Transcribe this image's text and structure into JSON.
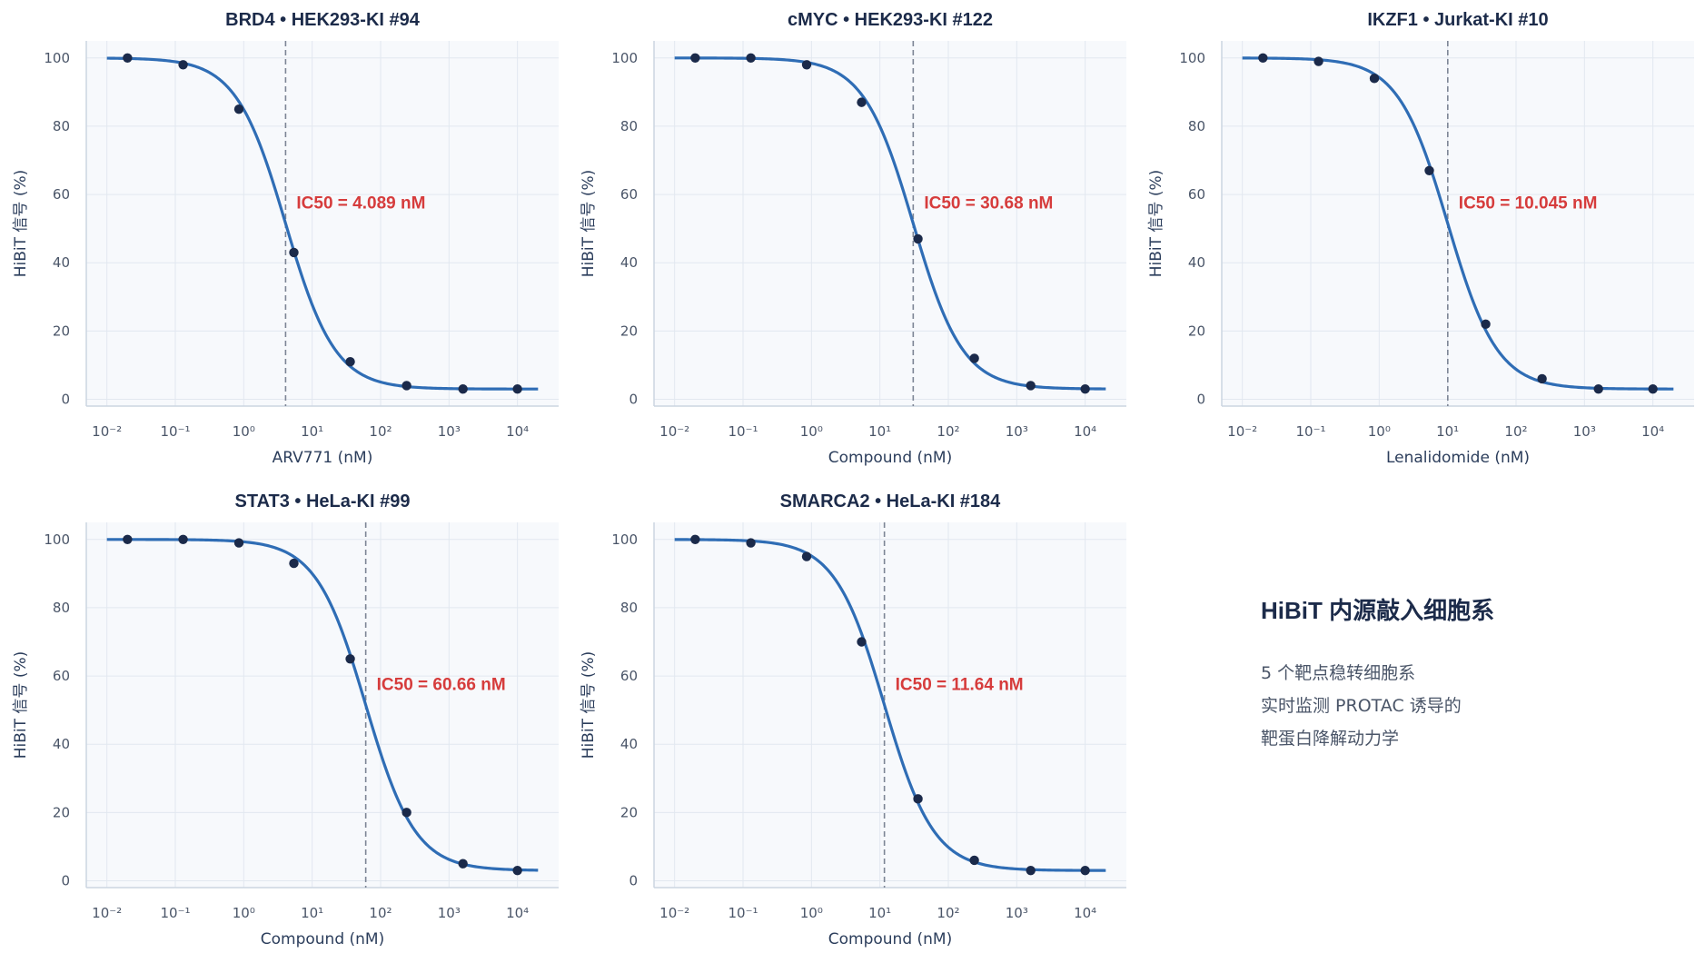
{
  "chart_data": [
    {
      "type": "line",
      "title": "BRD4  •  HEK293-KI #94",
      "xlabel": "ARV771 (nM)",
      "ylabel": "HiBiT 信号 (%)",
      "x_scale": "log",
      "xlim": [
        0.005,
        40000
      ],
      "ylim": [
        -2,
        105
      ],
      "x_ticks": [
        0.01,
        0.1,
        1,
        10,
        100,
        1000,
        10000
      ],
      "y_ticks": [
        0,
        20,
        40,
        60,
        80,
        100
      ],
      "ic50": 4.089,
      "ic50_label": "IC50 = 4.089 nM",
      "fit": {
        "top": 100,
        "bottom": 3,
        "hill": 1.2,
        "x_range": [
          0.01,
          20000
        ]
      },
      "series": [
        {
          "x": [
            0.02,
            0.13,
            0.85,
            5.4,
            36,
            240,
            1600,
            10000
          ],
          "y": [
            100,
            98,
            85,
            43,
            11,
            4,
            3,
            3
          ]
        }
      ]
    },
    {
      "type": "line",
      "title": "cMYC  •  HEK293-KI #122",
      "xlabel": "Compound (nM)",
      "ylabel": "HiBiT 信号 (%)",
      "x_scale": "log",
      "xlim": [
        0.005,
        40000
      ],
      "ylim": [
        -2,
        105
      ],
      "x_ticks": [
        0.01,
        0.1,
        1,
        10,
        100,
        1000,
        10000
      ],
      "y_ticks": [
        0,
        20,
        40,
        60,
        80,
        100
      ],
      "ic50": 30.68,
      "ic50_label": "IC50 = 30.68 nM",
      "fit": {
        "top": 100,
        "bottom": 3,
        "hill": 1.2,
        "x_range": [
          0.01,
          20000
        ]
      },
      "series": [
        {
          "x": [
            0.02,
            0.13,
            0.85,
            5.4,
            36,
            240,
            1600,
            10000
          ],
          "y": [
            100,
            100,
            98,
            87,
            47,
            12,
            4,
            3
          ]
        }
      ]
    },
    {
      "type": "line",
      "title": "IKZF1  •  Jurkat-KI #10",
      "xlabel": "Lenalidomide (nM)",
      "ylabel": "HiBiT 信号 (%)",
      "x_scale": "log",
      "xlim": [
        0.005,
        40000
      ],
      "ylim": [
        -2,
        105
      ],
      "x_ticks": [
        0.01,
        0.1,
        1,
        10,
        100,
        1000,
        10000
      ],
      "y_ticks": [
        0,
        20,
        40,
        60,
        80,
        100
      ],
      "ic50": 10.045,
      "ic50_label": "IC50 = 10.045 nM",
      "fit": {
        "top": 100,
        "bottom": 3,
        "hill": 1.2,
        "x_range": [
          0.01,
          20000
        ]
      },
      "series": [
        {
          "x": [
            0.02,
            0.13,
            0.85,
            5.4,
            36,
            240,
            1600,
            10000
          ],
          "y": [
            100,
            99,
            94,
            67,
            22,
            6,
            3,
            3
          ]
        }
      ]
    },
    {
      "type": "line",
      "title": "STAT3  •  HeLa-KI #99",
      "xlabel": "Compound (nM)",
      "ylabel": "HiBiT 信号 (%)",
      "x_scale": "log",
      "xlim": [
        0.005,
        40000
      ],
      "ylim": [
        -2,
        105
      ],
      "x_ticks": [
        0.01,
        0.1,
        1,
        10,
        100,
        1000,
        10000
      ],
      "y_ticks": [
        0,
        20,
        40,
        60,
        80,
        100
      ],
      "ic50": 60.66,
      "ic50_label": "IC50 = 60.66 nM",
      "fit": {
        "top": 100,
        "bottom": 3,
        "hill": 1.2,
        "x_range": [
          0.01,
          20000
        ]
      },
      "series": [
        {
          "x": [
            0.02,
            0.13,
            0.85,
            5.4,
            36,
            240,
            1600,
            10000
          ],
          "y": [
            100,
            100,
            99,
            93,
            65,
            20,
            5,
            3
          ]
        }
      ]
    },
    {
      "type": "line",
      "title": "SMARCA2  •  HeLa-KI #184",
      "xlabel": "Compound (nM)",
      "ylabel": "HiBiT 信号 (%)",
      "x_scale": "log",
      "xlim": [
        0.005,
        40000
      ],
      "ylim": [
        -2,
        105
      ],
      "x_ticks": [
        0.01,
        0.1,
        1,
        10,
        100,
        1000,
        10000
      ],
      "y_ticks": [
        0,
        20,
        40,
        60,
        80,
        100
      ],
      "ic50": 11.64,
      "ic50_label": "IC50 = 11.64 nM",
      "fit": {
        "top": 100,
        "bottom": 3,
        "hill": 1.2,
        "x_range": [
          0.01,
          20000
        ]
      },
      "series": [
        {
          "x": [
            0.02,
            0.13,
            0.85,
            5.4,
            36,
            240,
            1600,
            10000
          ],
          "y": [
            100,
            99,
            95,
            70,
            24,
            6,
            3,
            3
          ]
        }
      ]
    }
  ],
  "side_panel": {
    "title": "HiBiT 内源敲入细胞系",
    "lines": [
      "5 个靶点稳转细胞系",
      "实时监测 PROTAC 诱导的",
      "靶蛋白降解动力学"
    ]
  },
  "colors": {
    "curve": "#2f6db5",
    "points": "#1b2a4a",
    "ic50_line": "#7d8595",
    "ic50_text": "#d63c3c",
    "plot_bg": "#f7f9fc",
    "grid": "#e2e8f0",
    "axis": "#cbd5e1"
  }
}
